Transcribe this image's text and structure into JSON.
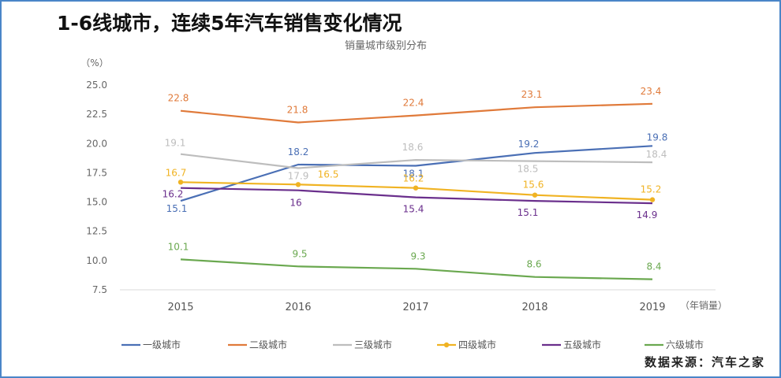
{
  "page": {
    "title": "1-6线城市，连续5年汽车销售变化情况",
    "source": "数据来源：汽车之家"
  },
  "chart_data": {
    "type": "line",
    "title": "销量城市级别分布",
    "ylabel": "（%）",
    "xlabel": "（年销量）",
    "categories": [
      "2015",
      "2016",
      "2017",
      "2018",
      "2019"
    ],
    "y_ticks": [
      "25.0",
      "22.5",
      "20.0",
      "17.5",
      "15.0",
      "12.5",
      "10.0",
      "7.5"
    ],
    "ylim": [
      7.5,
      25.0
    ],
    "grid": false,
    "legend_position": "bottom",
    "series": [
      {
        "name": "一级城市",
        "color": "#4a6fb5",
        "marker": false,
        "values": [
          15.1,
          18.2,
          18.1,
          19.2,
          19.8
        ]
      },
      {
        "name": "二级城市",
        "color": "#e07a3a",
        "marker": false,
        "values": [
          22.8,
          21.8,
          22.4,
          23.1,
          23.4
        ]
      },
      {
        "name": "三级城市",
        "color": "#bdbdbd",
        "marker": false,
        "values": [
          19.1,
          17.9,
          18.6,
          18.5,
          18.4
        ]
      },
      {
        "name": "四级城市",
        "color": "#f0b323",
        "marker": true,
        "values": [
          16.7,
          16.5,
          16.2,
          15.6,
          15.2
        ]
      },
      {
        "name": "五级城市",
        "color": "#6a2f8c",
        "marker": false,
        "values": [
          16.2,
          16.0,
          15.4,
          15.1,
          14.9
        ]
      },
      {
        "name": "六级城市",
        "color": "#6aa84f",
        "marker": false,
        "values": [
          10.1,
          9.5,
          9.3,
          8.6,
          8.4
        ]
      }
    ]
  }
}
